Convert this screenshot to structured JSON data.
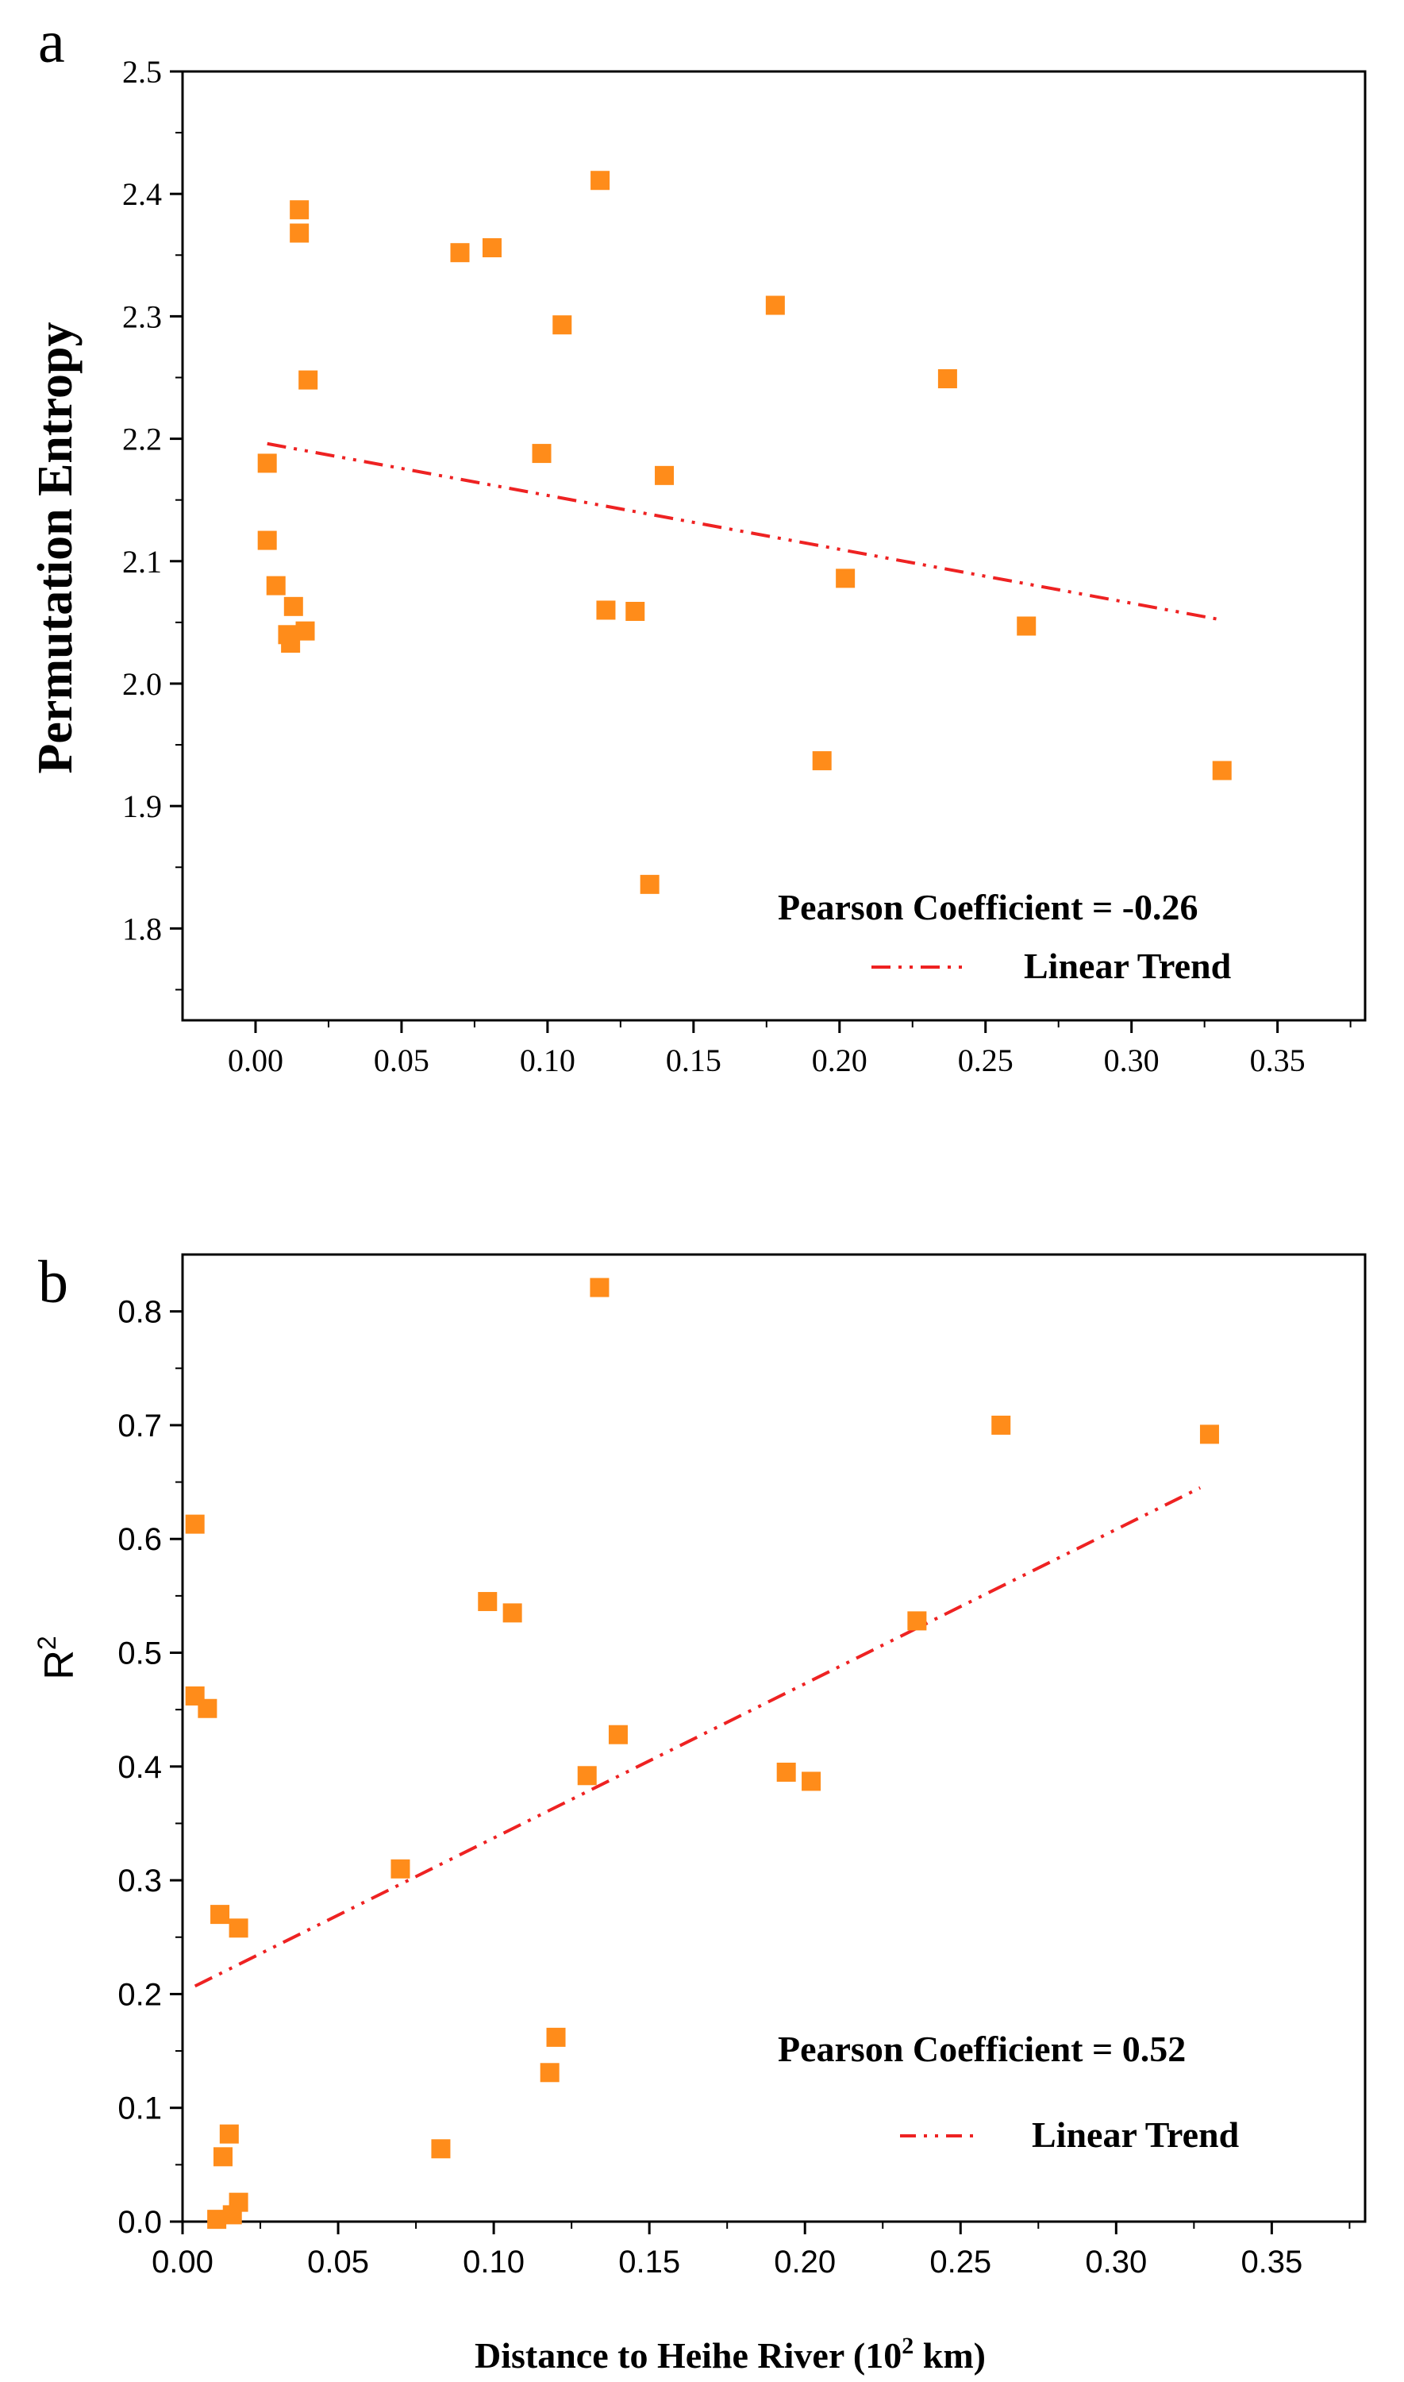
{
  "chart_data": [
    {
      "panel_label": "a",
      "type": "scatter",
      "ylabel": "Permutation Entropy",
      "xlabel": "",
      "xlim": [
        -0.025,
        0.38
      ],
      "ylim": [
        1.725,
        2.5
      ],
      "xticks": [
        "0.00",
        "0.05",
        "0.10",
        "0.15",
        "0.20",
        "0.25",
        "0.30",
        "0.35"
      ],
      "yticks": [
        "1.8",
        "1.9",
        "2.0",
        "2.1",
        "2.2",
        "2.3",
        "2.4",
        "2.5"
      ],
      "marker_color": "#ff8c1a",
      "trend_color": "#ee2222",
      "annotation": "Pearson Coefficient = -0.26",
      "legend_label": "Linear Trend",
      "points": [
        {
          "x": 0.004,
          "y": 2.18
        },
        {
          "x": 0.004,
          "y": 2.117
        },
        {
          "x": 0.007,
          "y": 2.08
        },
        {
          "x": 0.011,
          "y": 2.04
        },
        {
          "x": 0.012,
          "y": 2.033
        },
        {
          "x": 0.013,
          "y": 2.063
        },
        {
          "x": 0.015,
          "y": 2.387
        },
        {
          "x": 0.015,
          "y": 2.368
        },
        {
          "x": 0.017,
          "y": 2.043
        },
        {
          "x": 0.018,
          "y": 2.248
        },
        {
          "x": 0.07,
          "y": 2.352
        },
        {
          "x": 0.081,
          "y": 2.356
        },
        {
          "x": 0.098,
          "y": 2.188
        },
        {
          "x": 0.105,
          "y": 2.293
        },
        {
          "x": 0.118,
          "y": 2.411
        },
        {
          "x": 0.12,
          "y": 2.06
        },
        {
          "x": 0.13,
          "y": 2.059
        },
        {
          "x": 0.135,
          "y": 1.836
        },
        {
          "x": 0.14,
          "y": 2.17
        },
        {
          "x": 0.178,
          "y": 2.309
        },
        {
          "x": 0.194,
          "y": 1.937
        },
        {
          "x": 0.202,
          "y": 2.086
        },
        {
          "x": 0.237,
          "y": 2.249
        },
        {
          "x": 0.264,
          "y": 2.047
        },
        {
          "x": 0.331,
          "y": 1.929
        }
      ],
      "trend": {
        "x": [
          0.004,
          0.331
        ],
        "y": [
          2.196,
          2.052
        ]
      }
    },
    {
      "panel_label": "b",
      "type": "scatter",
      "ylabel_base": "R",
      "ylabel_sup": "2",
      "xlabel_prefix": "Distance to Heihe River (10",
      "xlabel_sup": "2",
      "xlabel_suffix": " km)",
      "xlim": [
        0.0,
        0.38
      ],
      "ylim": [
        0.0,
        0.85
      ],
      "xticks": [
        "0.00",
        "0.05",
        "0.10",
        "0.15",
        "0.20",
        "0.25",
        "0.30",
        "0.35"
      ],
      "yticks": [
        "0.0",
        "0.1",
        "0.2",
        "0.3",
        "0.4",
        "0.5",
        "0.6",
        "0.7",
        "0.8"
      ],
      "marker_color": "#ff8c1a",
      "trend_color": "#ee2222",
      "annotation": "Pearson Coefficient = 0.52",
      "legend_label": "Linear Trend",
      "points": [
        {
          "x": 0.004,
          "y": 0.613
        },
        {
          "x": 0.004,
          "y": 0.462
        },
        {
          "x": 0.008,
          "y": 0.451
        },
        {
          "x": 0.011,
          "y": 0.002
        },
        {
          "x": 0.012,
          "y": 0.27
        },
        {
          "x": 0.013,
          "y": 0.057
        },
        {
          "x": 0.015,
          "y": 0.077
        },
        {
          "x": 0.016,
          "y": 0.006
        },
        {
          "x": 0.018,
          "y": 0.017
        },
        {
          "x": 0.018,
          "y": 0.258
        },
        {
          "x": 0.07,
          "y": 0.31
        },
        {
          "x": 0.083,
          "y": 0.064
        },
        {
          "x": 0.098,
          "y": 0.545
        },
        {
          "x": 0.106,
          "y": 0.535
        },
        {
          "x": 0.118,
          "y": 0.131
        },
        {
          "x": 0.12,
          "y": 0.162
        },
        {
          "x": 0.13,
          "y": 0.392
        },
        {
          "x": 0.134,
          "y": 0.821
        },
        {
          "x": 0.14,
          "y": 0.428
        },
        {
          "x": 0.194,
          "y": 0.395
        },
        {
          "x": 0.202,
          "y": 0.387
        },
        {
          "x": 0.236,
          "y": 0.528
        },
        {
          "x": 0.263,
          "y": 0.7
        },
        {
          "x": 0.33,
          "y": 0.692
        }
      ],
      "trend": {
        "x": [
          0.004,
          0.327
        ],
        "y": [
          0.207,
          0.645
        ]
      }
    }
  ]
}
